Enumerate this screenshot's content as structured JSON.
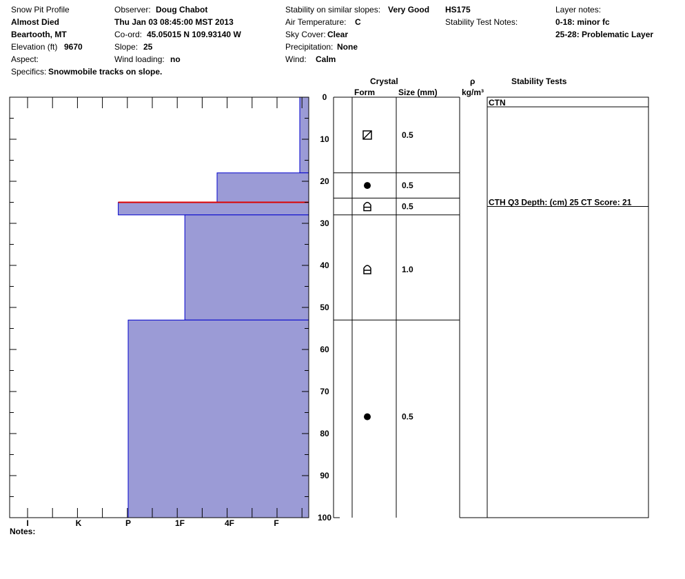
{
  "header": {
    "title": "Snow Pit Profile",
    "location_name": "Almost Died",
    "region": "Beartooth, MT",
    "elevation_label": "Elevation (ft)",
    "elevation_value": "9670",
    "aspect_label": "Aspect:",
    "specifics_label": "Specifics:",
    "specifics_value": "Snowmobile tracks on slope.",
    "observer_label": "Observer:",
    "observer_value": "Doug Chabot",
    "datetime": "Thu Jan 03 08:45:00 MST 2013",
    "coord_label": "Co-ord:",
    "coord_value": "45.05015 N 109.93140 W",
    "slope_label": "Slope:",
    "slope_value": "25",
    "wind_loading_label": "Wind loading:",
    "wind_loading_value": "no",
    "stability_label": "Stability on similar slopes:",
    "stability_value": "Very Good",
    "air_temp_label": "Air Temperature:",
    "air_temp_value": "C",
    "sky_label": "Sky Cover:",
    "sky_value": "Clear",
    "precip_label": "Precipitation:",
    "precip_value": "None",
    "wind_label": "Wind:",
    "wind_value": "Calm",
    "hs": "HS175",
    "stability_test_notes_label": "Stability Test Notes:",
    "layer_notes_label": "Layer notes:",
    "layer_notes": [
      "0-18: minor fc",
      "25-28: Problematic Layer"
    ]
  },
  "table_headers": {
    "crystal": "Crystal",
    "form": "Form",
    "size": "Size (mm)",
    "rho": "ρ",
    "density_unit": "kg/m³",
    "stability_tests": "Stability Tests"
  },
  "notes_label": "Notes:",
  "colors": {
    "layer_fill": "#9b9bd6",
    "layer_edge": "#0000cc",
    "problem_layer": "#dd0000"
  },
  "chart_data": {
    "type": "bar",
    "depth_unit": "cm",
    "depth_ticks": [
      0,
      10,
      20,
      30,
      40,
      50,
      60,
      70,
      80,
      90,
      100
    ],
    "hardness_scale": [
      "I",
      "K",
      "P",
      "1F",
      "4F",
      "F"
    ],
    "ylim": [
      0,
      100
    ],
    "layers": [
      {
        "top": 0,
        "bottom": 18,
        "hardness": "F",
        "hardness_index": 5.5
      },
      {
        "top": 18,
        "bottom": 25,
        "hardness": "1F+",
        "hardness_index": 3.75
      },
      {
        "top": 25,
        "bottom": 28,
        "hardness": "4F-",
        "hardness_index": 1.8,
        "problematic": true
      },
      {
        "top": 28,
        "bottom": 53,
        "hardness": "1F",
        "hardness_index": 3.1
      },
      {
        "top": 53,
        "bottom": 100,
        "hardness": "P",
        "hardness_index": 2.0
      }
    ],
    "crystal_layers": [
      {
        "top": 0,
        "bottom": 18,
        "form": "faceted-rounded",
        "size": "0.5",
        "symbol_depth": 9
      },
      {
        "top": 18,
        "bottom": 24,
        "form": "rounded",
        "size": "0.5",
        "symbol_depth": 21
      },
      {
        "top": 24,
        "bottom": 28,
        "form": "depth-hoar",
        "size": "0.5",
        "symbol_depth": 26
      },
      {
        "top": 28,
        "bottom": 53,
        "form": "depth-hoar",
        "size": "1.0",
        "symbol_depth": 41
      },
      {
        "top": 53,
        "bottom": 100,
        "form": "rounded",
        "size": "0.5",
        "symbol_depth": 76
      }
    ],
    "stability_tests": [
      {
        "depth": 0,
        "text": "CTN"
      },
      {
        "depth": 25,
        "text": "CTH Q3 Depth: (cm) 25 CT Score: 21"
      }
    ]
  }
}
